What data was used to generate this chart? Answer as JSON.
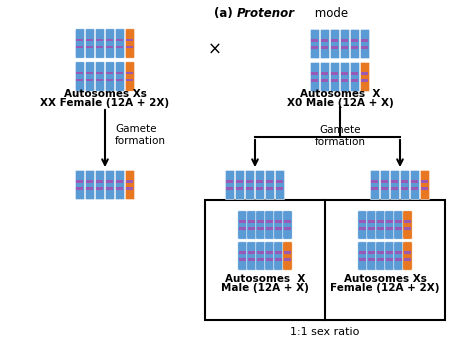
{
  "bg_color": "#ffffff",
  "blue_chr": "#5B9BD5",
  "orange_chr": "#E87722",
  "band_color": "#9B59B6",
  "text_color": "#000000",
  "labels": {
    "female_top_line1": "Autosomes Xs",
    "female_top_line2": "XX Female (12A + 2X)",
    "male_top_line1": "Autosomes  X",
    "male_top_line2": "X0 Male (12A + X)",
    "gamete_left": "Gamete\nformation",
    "gamete_right": "Gamete\nformation",
    "male_box_line1": "Autosomes  X",
    "male_box_line2": "Male (12A + X)",
    "female_box_line1": "Autosomes Xs",
    "female_box_line2": "Female (12A + 2X)",
    "ratio": "1:1 sex ratio",
    "cross": "×"
  }
}
